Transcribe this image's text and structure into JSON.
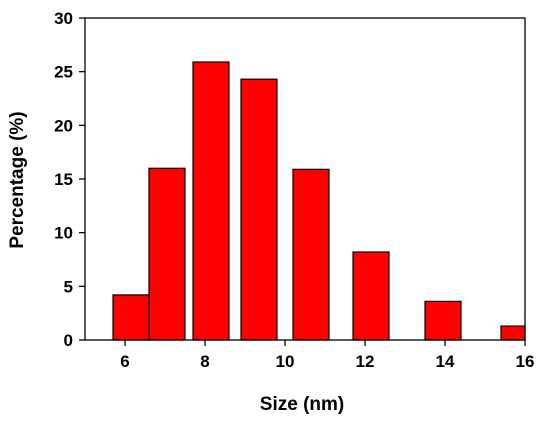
{
  "chart_data": {
    "type": "bar",
    "xlabel": "Size (nm)",
    "ylabel": "Percentage (%)",
    "xlim": [
      5,
      16
    ],
    "ylim": [
      0,
      30
    ],
    "xticks": [
      "6",
      "8",
      "10",
      "12",
      "14",
      "16"
    ],
    "yticks": [
      "0",
      "5",
      "10",
      "15",
      "20",
      "25",
      "30"
    ],
    "bars": [
      {
        "x_start": 5.7,
        "x_end": 6.6,
        "value": 4.2
      },
      {
        "x_start": 6.6,
        "x_end": 7.5,
        "value": 16.0
      },
      {
        "x_start": 7.7,
        "x_end": 8.6,
        "value": 25.9
      },
      {
        "x_start": 8.9,
        "x_end": 9.8,
        "value": 24.3
      },
      {
        "x_start": 10.2,
        "x_end": 11.1,
        "value": 15.9
      },
      {
        "x_start": 11.7,
        "x_end": 12.6,
        "value": 8.2
      },
      {
        "x_start": 13.5,
        "x_end": 14.4,
        "value": 3.6
      },
      {
        "x_start": 15.4,
        "x_end": 16.1,
        "value": 1.3
      }
    ],
    "bar_color": "#ff0000",
    "grid": false
  }
}
